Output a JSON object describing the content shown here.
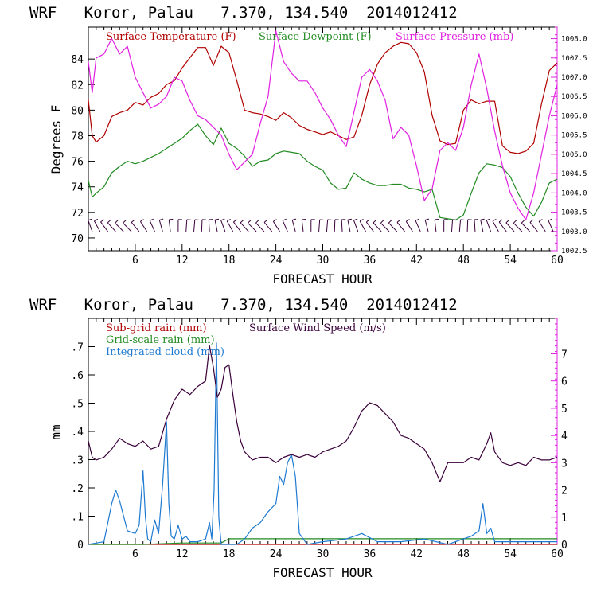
{
  "chart_data": [
    {
      "type": "line",
      "title": "WRF   Koror, Palau   7.370, 134.540  2014012412",
      "xlabel": "FORECAST HOUR",
      "ylabel": "Degrees F",
      "xlim": [
        0,
        60
      ],
      "ylim": [
        69,
        86.5
      ],
      "y2lim": [
        1002.5,
        1008.3
      ],
      "x_ticks": [
        "6",
        "12",
        "18",
        "24",
        "30",
        "36",
        "42",
        "48",
        "54",
        "60"
      ],
      "y_ticks": [
        "70",
        "72",
        "74",
        "76",
        "78",
        "80",
        "82",
        "84"
      ],
      "y2_ticks": [
        "1002.5",
        "1003.0",
        "1003.5",
        "1004.0",
        "1004.5",
        "1005.0",
        "1005.5",
        "1006.0",
        "1006.5",
        "1007.0",
        "1007.5",
        "1008.0"
      ],
      "grid": false,
      "legend_position": "top",
      "colors": {
        "temperature": "#b00000",
        "dewpoint": "#228b22",
        "pressure": "#e020e0",
        "wind_barbs": "#3a003a"
      },
      "series": [
        {
          "name": "Surface Temperature (F)",
          "axis": "left",
          "x": [
            0,
            0.5,
            1,
            2,
            3,
            4,
            5,
            6,
            7,
            8,
            9,
            10,
            11,
            12,
            13,
            14,
            15,
            16,
            17,
            18,
            19,
            20,
            21,
            22,
            23,
            24,
            25,
            26,
            27,
            28,
            29,
            30,
            31,
            32,
            33,
            34,
            35,
            36,
            37,
            38,
            39,
            40,
            41,
            42,
            43,
            44,
            45,
            46,
            47,
            48,
            49,
            50,
            51,
            52,
            53,
            54,
            55,
            56,
            57,
            58,
            59,
            60
          ],
          "values": [
            80.8,
            78.0,
            77.5,
            78.0,
            79.5,
            79.8,
            80.0,
            80.6,
            80.4,
            81.0,
            81.3,
            82.0,
            82.3,
            83.3,
            84.1,
            84.9,
            84.9,
            83.5,
            85.0,
            84.5,
            82.3,
            80.0,
            79.8,
            79.7,
            79.5,
            79.2,
            79.8,
            79.4,
            78.8,
            78.5,
            78.3,
            78.1,
            78.3,
            78.0,
            77.7,
            77.9,
            79.6,
            82.0,
            83.6,
            84.5,
            85.0,
            85.3,
            85.2,
            84.5,
            83.0,
            79.6,
            77.6,
            77.3,
            77.4,
            80.0,
            80.8,
            80.5,
            80.7,
            80.7,
            77.2,
            76.7,
            76.6,
            76.8,
            77.4,
            80.5,
            83.1,
            83.7
          ]
        },
        {
          "name": "Surface Dewpoint (F)",
          "axis": "left",
          "x": [
            0,
            0.5,
            1,
            2,
            3,
            4,
            5,
            6,
            7,
            8,
            9,
            10,
            11,
            12,
            13,
            14,
            15,
            16,
            17,
            18,
            19,
            20,
            21,
            22,
            23,
            24,
            25,
            26,
            27,
            28,
            29,
            30,
            31,
            32,
            33,
            34,
            35,
            36,
            37,
            38,
            39,
            40,
            41,
            42,
            43,
            44,
            45,
            46,
            47,
            48,
            49,
            50,
            51,
            52,
            53,
            54,
            55,
            56,
            57,
            58,
            59,
            60
          ],
          "values": [
            74.5,
            73.2,
            73.5,
            74.0,
            75.1,
            75.6,
            76.0,
            75.8,
            76.0,
            76.3,
            76.6,
            77.0,
            77.4,
            77.8,
            78.4,
            78.9,
            78.0,
            77.3,
            78.6,
            77.4,
            77.0,
            76.4,
            75.6,
            76.0,
            76.1,
            76.6,
            76.8,
            76.7,
            76.6,
            76.0,
            75.6,
            75.3,
            74.3,
            73.8,
            73.9,
            75.1,
            74.6,
            74.3,
            74.1,
            74.1,
            74.2,
            74.2,
            73.9,
            73.8,
            73.6,
            73.8,
            71.6,
            71.5,
            71.4,
            71.8,
            73.5,
            75.1,
            75.8,
            75.7,
            75.5,
            74.8,
            73.5,
            72.4,
            71.7,
            72.8,
            74.3,
            74.6
          ]
        },
        {
          "name": "Surface Pressure (mb)",
          "axis": "right",
          "x": [
            0,
            0.5,
            1,
            2,
            3,
            4,
            5,
            6,
            7,
            8,
            9,
            10,
            11,
            12,
            13,
            14,
            15,
            16,
            17,
            18,
            19,
            20,
            21,
            22,
            23,
            24,
            25,
            26,
            27,
            28,
            29,
            30,
            31,
            32,
            33,
            34,
            35,
            36,
            37,
            38,
            39,
            40,
            41,
            42,
            43,
            44,
            45,
            46,
            47,
            48,
            49,
            50,
            51,
            52,
            53,
            54,
            55,
            56,
            57,
            58,
            59,
            60
          ],
          "values": [
            1007.4,
            1006.6,
            1007.5,
            1007.6,
            1008.0,
            1007.6,
            1007.8,
            1007.0,
            1006.6,
            1006.2,
            1006.3,
            1006.5,
            1007.0,
            1006.9,
            1006.4,
            1006.0,
            1005.9,
            1005.7,
            1005.5,
            1005.0,
            1004.6,
            1004.8,
            1005.0,
            1005.8,
            1006.5,
            1008.2,
            1007.4,
            1007.1,
            1006.9,
            1006.9,
            1006.6,
            1006.2,
            1005.9,
            1005.5,
            1005.2,
            1006.1,
            1007.0,
            1007.2,
            1006.9,
            1006.4,
            1005.4,
            1005.7,
            1005.5,
            1004.7,
            1003.8,
            1004.1,
            1005.1,
            1005.3,
            1005.1,
            1005.7,
            1006.8,
            1007.6,
            1006.7,
            1005.6,
            1004.7,
            1004.0,
            1003.6,
            1003.3,
            1004.0,
            1005.0,
            1006.0,
            1006.8
          ]
        }
      ],
      "wind_barbs": {
        "x_start": 0.5,
        "x_step": 1,
        "count": 60,
        "y": 70.5
      }
    },
    {
      "type": "line",
      "title": "WRF   Koror, Palau   7.370, 134.540  2014012412",
      "xlabel": "FORECAST HOUR",
      "ylabel": "mm",
      "xlim": [
        0,
        60
      ],
      "ylim": [
        0,
        0.8
      ],
      "y2lim": [
        0,
        8.3
      ],
      "x_ticks": [
        "6",
        "12",
        "18",
        "24",
        "30",
        "36",
        "42",
        "48",
        "54",
        "60"
      ],
      "y_ticks": [
        "0",
        ".1",
        ".2",
        ".3",
        ".4",
        ".5",
        ".6",
        ".7"
      ],
      "y2_ticks": [
        "0",
        "1",
        "2",
        "3",
        "4",
        "5",
        "6",
        "7"
      ],
      "grid": false,
      "legend_position": "top-left",
      "colors": {
        "subgrid": "#b00000",
        "gridscale": "#228b22",
        "cloud": "#1e7ad0",
        "wind": "#3a003a"
      },
      "series": [
        {
          "name": "Sub-grid rain (mm)",
          "axis": "left",
          "x": [
            0,
            60
          ],
          "values": [
            0,
            0
          ]
        },
        {
          "name": "Grid-scale rain (mm)",
          "axis": "left",
          "x": [
            0,
            7,
            12,
            17,
            18,
            60
          ],
          "values": [
            0,
            0,
            0.005,
            0.005,
            0.02,
            0.02
          ]
        },
        {
          "name": "Integrated cloud (mm)",
          "axis": "right",
          "x": [
            0,
            2,
            3,
            3.5,
            4,
            5,
            6,
            6.5,
            7,
            7.3,
            7.6,
            8,
            8.5,
            9,
            9.5,
            10,
            10.3,
            10.6,
            11,
            11.5,
            12,
            12.5,
            13,
            14,
            15,
            15.5,
            15.8,
            16.1,
            16.4,
            16.7,
            17,
            17.3,
            18,
            19,
            20,
            21,
            22,
            23,
            24,
            24.5,
            25,
            25.5,
            26,
            26.5,
            27,
            28,
            30,
            33,
            35,
            37,
            40,
            43,
            46,
            49,
            50,
            50.5,
            51,
            51.5,
            52,
            53,
            56,
            58,
            60
          ],
          "values": [
            0,
            0.1,
            1.5,
            2.0,
            1.6,
            0.5,
            0.4,
            0.7,
            2.7,
            1.0,
            0.2,
            0.1,
            0.9,
            0.4,
            2.2,
            4.5,
            1.5,
            0.3,
            0.2,
            0.7,
            0.2,
            0.3,
            0.1,
            0.1,
            0.2,
            0.8,
            0.2,
            2.0,
            7.4,
            1.0,
            0.0,
            0.0,
            0.0,
            0.0,
            0.2,
            0.6,
            0.8,
            1.2,
            1.5,
            2.5,
            2.2,
            3.0,
            3.3,
            2.5,
            0.4,
            0.0,
            0.1,
            0.2,
            0.4,
            0.1,
            0.1,
            0.2,
            0.0,
            0.3,
            0.5,
            1.5,
            0.4,
            0.6,
            0.1,
            0.1,
            0.1,
            0.1,
            0.1
          ]
        },
        {
          "name": "Surface Wind Speed (m/s)",
          "axis": "right",
          "x": [
            0,
            0.5,
            1,
            2,
            3,
            4,
            5,
            6,
            7,
            8,
            9,
            10,
            11,
            12,
            13,
            14,
            15,
            15.5,
            16,
            16.5,
            17,
            17.5,
            18,
            18.5,
            19,
            19.5,
            20,
            21,
            22,
            23,
            24,
            25,
            26,
            27,
            28,
            29,
            30,
            31,
            32,
            33,
            34,
            35,
            36,
            37,
            38,
            39,
            40,
            41,
            42,
            43,
            44,
            45,
            46,
            47,
            48,
            49,
            50,
            51,
            51.5,
            52,
            53,
            54,
            55,
            56,
            57,
            58,
            59,
            60
          ],
          "values": [
            3.8,
            3.2,
            3.1,
            3.2,
            3.5,
            3.9,
            3.7,
            3.6,
            3.8,
            3.5,
            3.6,
            4.6,
            5.3,
            5.7,
            5.5,
            5.8,
            6.0,
            7.3,
            6.5,
            5.4,
            5.7,
            6.5,
            6.6,
            5.5,
            4.5,
            3.8,
            3.4,
            3.1,
            3.2,
            3.2,
            3.0,
            3.2,
            3.3,
            3.2,
            3.3,
            3.2,
            3.4,
            3.5,
            3.6,
            3.8,
            4.3,
            4.9,
            5.2,
            5.1,
            4.8,
            4.5,
            4.0,
            3.9,
            3.7,
            3.5,
            3.0,
            2.3,
            3.0,
            3.0,
            3.0,
            3.2,
            3.1,
            3.7,
            4.1,
            3.4,
            3.0,
            2.9,
            3.0,
            2.9,
            3.2,
            3.1,
            3.1,
            3.2
          ]
        }
      ]
    }
  ]
}
